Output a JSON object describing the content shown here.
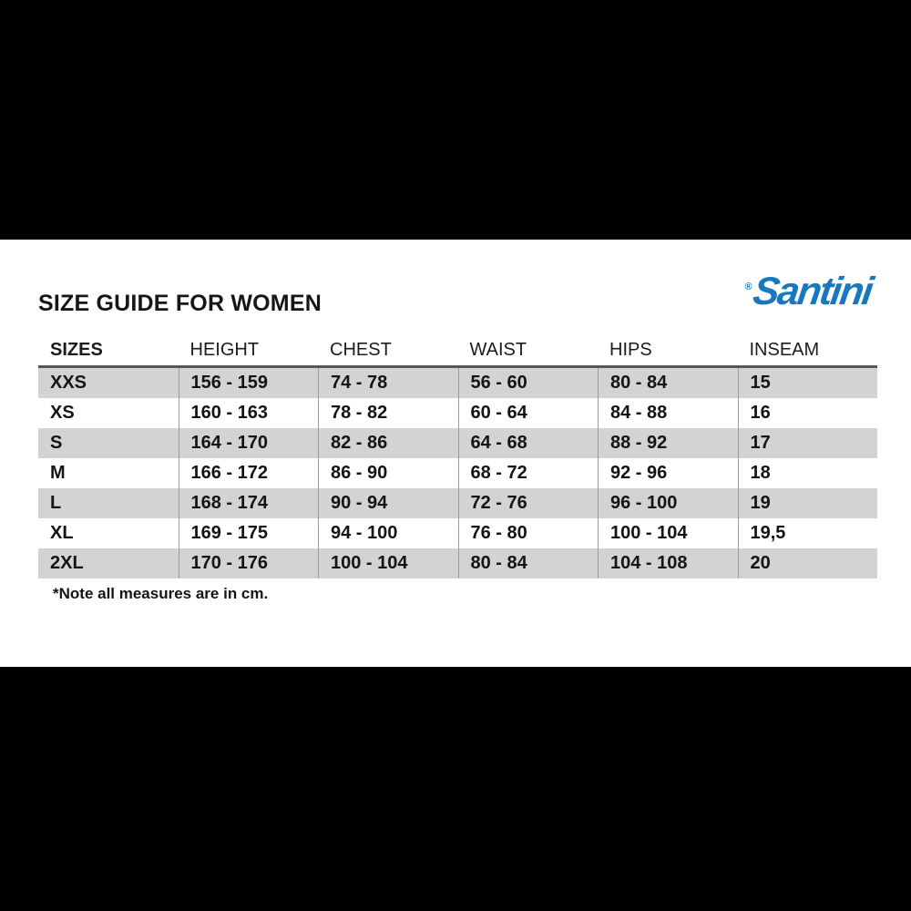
{
  "page": {
    "letterbox_color": "#000000",
    "panel_color": "#ffffff"
  },
  "header": {
    "title": "SIZE GUIDE FOR WOMEN",
    "brand": {
      "name": "Santini",
      "registered_mark": "®",
      "color": "#1878be"
    }
  },
  "table": {
    "columns": [
      "SIZES",
      "HEIGHT",
      "CHEST",
      "WAIST",
      "HIPS",
      "INSEAM"
    ],
    "rows": [
      [
        "XXS",
        "156 - 159",
        "74 - 78",
        "56 - 60",
        "80 - 84",
        "15"
      ],
      [
        "XS",
        "160 - 163",
        "78 - 82",
        "60 - 64",
        "84 - 88",
        "16"
      ],
      [
        "S",
        "164 - 170",
        "82 - 86",
        "64 - 68",
        "88 - 92",
        "17"
      ],
      [
        "M",
        "166 - 172",
        "86 - 90",
        "68 - 72",
        "92 - 96",
        "18"
      ],
      [
        "L",
        "168 - 174",
        "90 - 94",
        "72 - 76",
        "96 - 100",
        "19"
      ],
      [
        "XL",
        "169 - 175",
        "94 - 100",
        "76 - 80",
        "100 - 104",
        "19,5"
      ],
      [
        "2XL",
        "170 - 176",
        "100 - 104",
        "80 - 84",
        "104 - 108",
        "20"
      ]
    ],
    "alt_row_color": "#d3d3d3",
    "divider_color": "#9a9a9a",
    "header_border_color": "#565656"
  },
  "footnote": "*Note all measures are in cm."
}
